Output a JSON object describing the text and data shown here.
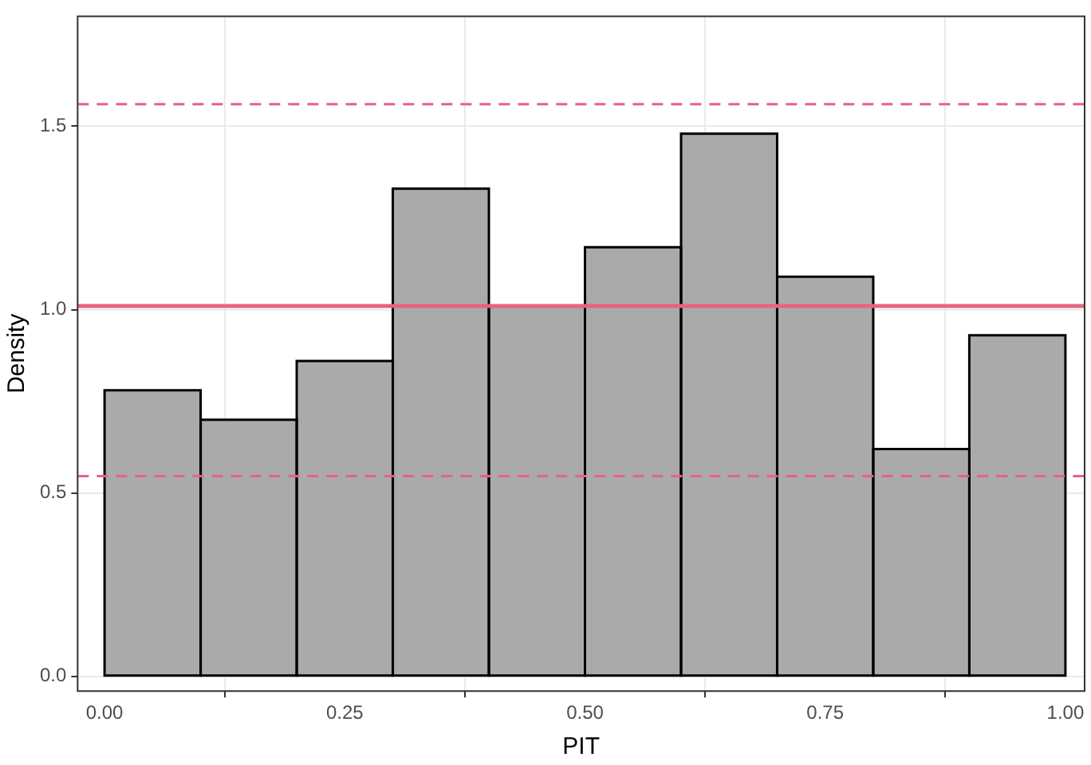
{
  "chart_data": {
    "type": "histogram",
    "xlabel": "PIT",
    "ylabel": "Density",
    "bins": [
      0,
      0.1,
      0.2,
      0.3,
      0.4,
      0.5,
      0.6,
      0.7,
      0.8,
      0.9,
      1.0
    ],
    "values": [
      0.78,
      0.7,
      0.86,
      1.33,
      1.01,
      1.17,
      1.48,
      1.09,
      0.62,
      0.93
    ],
    "color": "#aaaaaa",
    "xlim": [
      -0.028,
      1.02
    ],
    "xticks": [
      {
        "value": 0,
        "label": "0.00"
      },
      {
        "value": 0.25,
        "label": "0.25"
      },
      {
        "value": 0.5,
        "label": "0.50"
      },
      {
        "value": 0.75,
        "label": "0.75"
      },
      {
        "value": 1,
        "label": "1.00"
      }
    ],
    "ylim": [
      -0.04,
      1.8
    ],
    "yticks": [
      {
        "value": 0,
        "label": "0.0"
      },
      {
        "value": 0.5,
        "label": "0.5"
      },
      {
        "value": 1,
        "label": "1.0"
      },
      {
        "value": 1.5,
        "label": "1.5"
      }
    ],
    "grid": true,
    "ref_lines": [
      {
        "axis": "y",
        "value": 1.01,
        "color": "#e8637e",
        "line_style": "solid"
      },
      {
        "axis": "y",
        "value": 1.56,
        "color": "#e8637e",
        "line_style": "dashed"
      },
      {
        "axis": "y",
        "value": 0.546,
        "color": "#e8637e",
        "line_style": "dashed"
      }
    ]
  }
}
